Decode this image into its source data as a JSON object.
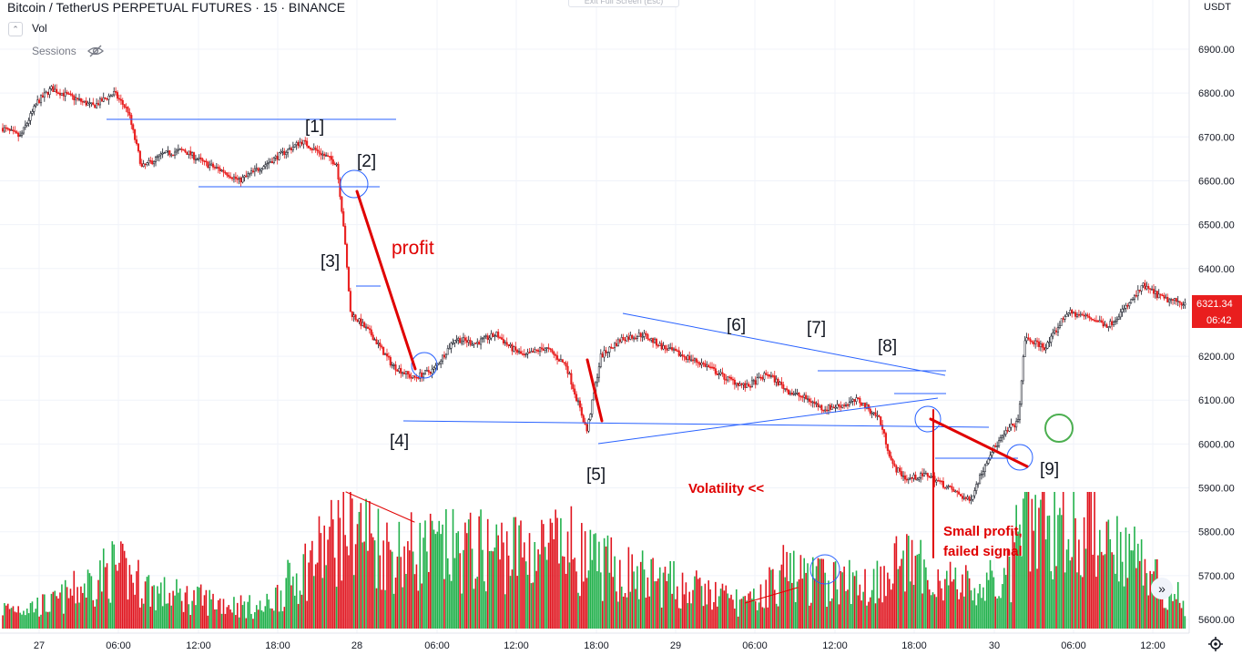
{
  "header": {
    "symbol_title": "Bitcoin / TetherUS PERPETUAL FUTURES · 15 · BINANCE",
    "vol_label": "Vol",
    "sessions_label": "Sessions",
    "exit_fullscreen": "Exit Full Screen (Esc)",
    "currency": "USDT"
  },
  "price_axis": {
    "labels": [
      "6900.00",
      "6800.00",
      "6700.00",
      "6600.00",
      "6500.00",
      "6400.00",
      "6300.00",
      "6200.00",
      "6100.00",
      "6000.00",
      "5900.00",
      "5800.00",
      "5700.00",
      "5600.00"
    ],
    "last_price": "6321.34",
    "countdown": "06:42",
    "last_price_color": "#e91e1e"
  },
  "time_axis": {
    "labels": [
      "27",
      "06:00",
      "12:00",
      "18:00",
      "28",
      "06:00",
      "12:00",
      "18:00",
      "29",
      "06:00",
      "12:00",
      "18:00",
      "30",
      "06:00",
      "12:00"
    ]
  },
  "annotations": {
    "labels": [
      "[1]",
      "[2]",
      "[3]",
      "[4]",
      "[5]",
      "[6]",
      "[7]",
      "[8]",
      "[9]"
    ],
    "profit": "profit",
    "volatility": "Volatility <<",
    "small_profit_1": "Small profit,",
    "small_profit_2": "failed signal"
  },
  "colors": {
    "up": "#26a69a",
    "down": "#e91e1e",
    "wick": "#131722",
    "vol_up": "#22b14c",
    "vol_down": "#e0141e",
    "trendline": "#2962ff",
    "annotation_red": "#e00000"
  },
  "chart_data": {
    "type": "candlestick",
    "interval": "15",
    "ylim": [
      5600,
      6950
    ],
    "price_path": [
      [
        0,
        6720
      ],
      [
        10,
        6700
      ],
      [
        20,
        6780
      ],
      [
        28,
        6810
      ],
      [
        40,
        6790
      ],
      [
        52,
        6770
      ],
      [
        64,
        6800
      ],
      [
        72,
        6760
      ],
      [
        80,
        6630
      ],
      [
        92,
        6660
      ],
      [
        104,
        6670
      ],
      [
        116,
        6640
      ],
      [
        128,
        6620
      ],
      [
        136,
        6600
      ],
      [
        148,
        6630
      ],
      [
        160,
        6660
      ],
      [
        172,
        6690
      ],
      [
        184,
        6660
      ],
      [
        192,
        6640
      ],
      [
        196,
        6500
      ],
      [
        200,
        6300
      ],
      [
        212,
        6250
      ],
      [
        224,
        6180
      ],
      [
        236,
        6150
      ],
      [
        248,
        6170
      ],
      [
        260,
        6240
      ],
      [
        272,
        6230
      ],
      [
        284,
        6250
      ],
      [
        292,
        6220
      ],
      [
        300,
        6200
      ],
      [
        312,
        6220
      ],
      [
        324,
        6180
      ],
      [
        332,
        6080
      ],
      [
        336,
        6030
      ],
      [
        344,
        6200
      ],
      [
        356,
        6240
      ],
      [
        368,
        6250
      ],
      [
        380,
        6220
      ],
      [
        392,
        6200
      ],
      [
        404,
        6180
      ],
      [
        416,
        6150
      ],
      [
        428,
        6130
      ],
      [
        440,
        6160
      ],
      [
        452,
        6120
      ],
      [
        464,
        6100
      ],
      [
        472,
        6080
      ],
      [
        484,
        6090
      ],
      [
        492,
        6100
      ],
      [
        504,
        6060
      ],
      [
        512,
        5950
      ],
      [
        520,
        5920
      ],
      [
        532,
        5930
      ],
      [
        544,
        5900
      ],
      [
        556,
        5870
      ],
      [
        568,
        5980
      ],
      [
        580,
        6040
      ],
      [
        584,
        6050
      ],
      [
        588,
        6240
      ],
      [
        600,
        6220
      ],
      [
        612,
        6300
      ],
      [
        624,
        6290
      ],
      [
        636,
        6270
      ],
      [
        648,
        6320
      ],
      [
        656,
        6360
      ],
      [
        668,
        6330
      ],
      [
        680,
        6321
      ]
    ],
    "volume_path": [
      [
        0,
        0.18
      ],
      [
        28,
        0.22
      ],
      [
        64,
        0.55
      ],
      [
        90,
        0.32
      ],
      [
        150,
        0.18
      ],
      [
        194,
        0.88
      ],
      [
        200,
        1.0
      ],
      [
        222,
        0.7
      ],
      [
        330,
        0.72
      ],
      [
        336,
        0.6
      ],
      [
        430,
        0.22
      ],
      [
        452,
        0.55
      ],
      [
        460,
        0.45
      ],
      [
        500,
        0.4
      ],
      [
        512,
        0.62
      ],
      [
        560,
        0.35
      ],
      [
        580,
        0.48
      ],
      [
        585,
        1.0
      ],
      [
        636,
        0.9
      ],
      [
        680,
        0.22
      ]
    ]
  }
}
